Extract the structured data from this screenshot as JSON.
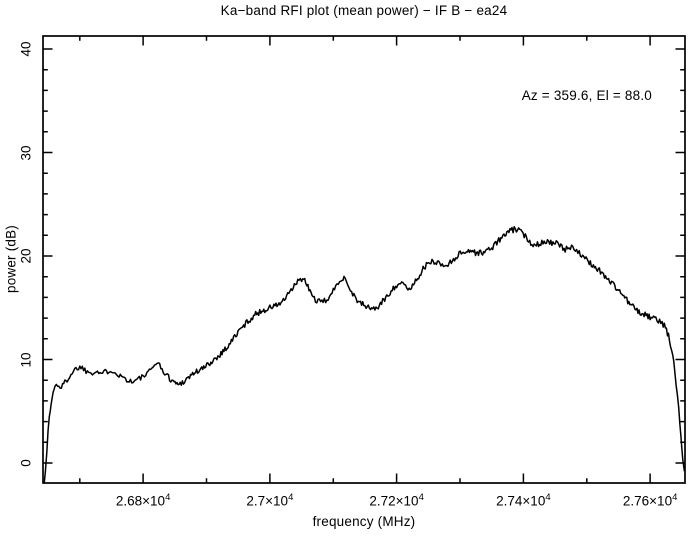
{
  "title": "Ka−band RFI plot (mean power) − IF B − ea24",
  "annotation": "Az = 359.6, El = 88.0",
  "chart_data": {
    "type": "line",
    "title": "Ka−band RFI plot (mean power) − IF B − ea24",
    "xlabel": "frequency (MHz)",
    "ylabel": "power (dB)",
    "annotation": "Az = 359.6, El = 88.0",
    "xlim": [
      26642,
      27655
    ],
    "ylim": [
      -1.93,
      41.26
    ],
    "grid": false,
    "legend": "none",
    "line_color": "#000000",
    "background_color": "#ffffff",
    "x_major_ticks": [
      {
        "value": 26800,
        "base": "2.68×10",
        "exp": "4"
      },
      {
        "value": 27000,
        "base": "2.7×10",
        "exp": "4"
      },
      {
        "value": 27200,
        "base": "2.72×10",
        "exp": "4"
      },
      {
        "value": 27400,
        "base": "2.74×10",
        "exp": "4"
      },
      {
        "value": 27600,
        "base": "2.76×10",
        "exp": "4"
      }
    ],
    "x_minor_ticks": [
      26700,
      26900,
      27100,
      27300,
      27500
    ],
    "y_major_ticks": [
      {
        "value": 0,
        "label": "0"
      },
      {
        "value": 10,
        "label": "10"
      },
      {
        "value": 20,
        "label": "20"
      },
      {
        "value": 30,
        "label": "30"
      },
      {
        "value": 40,
        "label": "40"
      }
    ],
    "y_minor_step": 2,
    "series": [
      {
        "name": "mean power",
        "points": [
          [
            26644,
            -1.9
          ],
          [
            26646,
            -0.5
          ],
          [
            26648,
            1.2
          ],
          [
            26650,
            3.0
          ],
          [
            26652,
            4.4
          ],
          [
            26655,
            5.8
          ],
          [
            26658,
            6.8
          ],
          [
            26661,
            7.4
          ],
          [
            26665,
            7.6
          ],
          [
            26669,
            7.3
          ],
          [
            26673,
            7.5
          ],
          [
            26678,
            7.9
          ],
          [
            26684,
            8.4
          ],
          [
            26690,
            8.9
          ],
          [
            26696,
            9.2
          ],
          [
            26702,
            9.3
          ],
          [
            26708,
            9.0
          ],
          [
            26714,
            8.8
          ],
          [
            26720,
            8.8
          ],
          [
            26726,
            8.9
          ],
          [
            26732,
            8.7
          ],
          [
            26738,
            8.7
          ],
          [
            26744,
            8.9
          ],
          [
            26750,
            9.0
          ],
          [
            26756,
            8.8
          ],
          [
            26762,
            8.5
          ],
          [
            26768,
            8.3
          ],
          [
            26774,
            8.1
          ],
          [
            26780,
            7.9
          ],
          [
            26786,
            7.9
          ],
          [
            26792,
            8.1
          ],
          [
            26798,
            8.3
          ],
          [
            26804,
            8.5
          ],
          [
            26810,
            8.8
          ],
          [
            26816,
            9.3
          ],
          [
            26820,
            9.8
          ],
          [
            26824,
            9.6
          ],
          [
            26828,
            9.2
          ],
          [
            26834,
            8.7
          ],
          [
            26840,
            8.3
          ],
          [
            26847,
            7.9
          ],
          [
            26855,
            7.6
          ],
          [
            26862,
            7.8
          ],
          [
            26870,
            8.2
          ],
          [
            26878,
            8.6
          ],
          [
            26886,
            8.9
          ],
          [
            26894,
            9.1
          ],
          [
            26902,
            9.5
          ],
          [
            26910,
            9.9
          ],
          [
            26918,
            10.3
          ],
          [
            26926,
            10.8
          ],
          [
            26934,
            11.3
          ],
          [
            26941,
            11.9
          ],
          [
            26948,
            12.5
          ],
          [
            26955,
            13.0
          ],
          [
            26962,
            13.5
          ],
          [
            26969,
            13.9
          ],
          [
            26976,
            14.3
          ],
          [
            26984,
            14.6
          ],
          [
            26992,
            14.8
          ],
          [
            27000,
            15.0
          ],
          [
            27008,
            15.2
          ],
          [
            27016,
            15.4
          ],
          [
            27023,
            15.8
          ],
          [
            27030,
            16.3
          ],
          [
            27037,
            17.0
          ],
          [
            27044,
            17.5
          ],
          [
            27050,
            17.8
          ],
          [
            27055,
            17.6
          ],
          [
            27060,
            17.0
          ],
          [
            27065,
            16.4
          ],
          [
            27070,
            15.9
          ],
          [
            27076,
            15.6
          ],
          [
            27082,
            15.5
          ],
          [
            27088,
            15.7
          ],
          [
            27094,
            16.1
          ],
          [
            27100,
            16.6
          ],
          [
            27106,
            17.2
          ],
          [
            27112,
            17.8
          ],
          [
            27117,
            18.0
          ],
          [
            27123,
            17.3
          ],
          [
            27129,
            16.5
          ],
          [
            27136,
            15.9
          ],
          [
            27143,
            15.4
          ],
          [
            27150,
            15.2
          ],
          [
            27157,
            15.0
          ],
          [
            27164,
            14.9
          ],
          [
            27171,
            15.1
          ],
          [
            27178,
            15.6
          ],
          [
            27186,
            16.2
          ],
          [
            27193,
            16.8
          ],
          [
            27200,
            17.2
          ],
          [
            27206,
            17.4
          ],
          [
            27212,
            17.1
          ],
          [
            27218,
            16.8
          ],
          [
            27225,
            17.1
          ],
          [
            27233,
            17.9
          ],
          [
            27240,
            18.6
          ],
          [
            27247,
            19.1
          ],
          [
            27254,
            19.4
          ],
          [
            27261,
            19.5
          ],
          [
            27268,
            19.3
          ],
          [
            27274,
            19.0
          ],
          [
            27281,
            19.2
          ],
          [
            27288,
            19.6
          ],
          [
            27295,
            20.0
          ],
          [
            27302,
            20.3
          ],
          [
            27310,
            20.5
          ],
          [
            27318,
            20.5
          ],
          [
            27326,
            20.3
          ],
          [
            27334,
            20.3
          ],
          [
            27342,
            20.5
          ],
          [
            27350,
            20.8
          ],
          [
            27358,
            21.3
          ],
          [
            27366,
            21.8
          ],
          [
            27374,
            22.2
          ],
          [
            27382,
            22.5
          ],
          [
            27389,
            22.6
          ],
          [
            27396,
            22.3
          ],
          [
            27403,
            21.9
          ],
          [
            27410,
            21.4
          ],
          [
            27417,
            21.1
          ],
          [
            27424,
            21.2
          ],
          [
            27431,
            21.4
          ],
          [
            27438,
            21.4
          ],
          [
            27445,
            21.3
          ],
          [
            27452,
            21.2
          ],
          [
            27459,
            20.9
          ],
          [
            27466,
            20.6
          ],
          [
            27472,
            20.8
          ],
          [
            27478,
            21.0
          ],
          [
            27484,
            20.6
          ],
          [
            27490,
            20.1
          ],
          [
            27497,
            19.7
          ],
          [
            27504,
            19.4
          ],
          [
            27512,
            19.0
          ],
          [
            27520,
            18.6
          ],
          [
            27528,
            18.1
          ],
          [
            27536,
            17.6
          ],
          [
            27544,
            17.1
          ],
          [
            27552,
            16.6
          ],
          [
            27560,
            16.0
          ],
          [
            27568,
            15.4
          ],
          [
            27576,
            14.9
          ],
          [
            27584,
            14.5
          ],
          [
            27592,
            14.3
          ],
          [
            27600,
            14.1
          ],
          [
            27607,
            13.9
          ],
          [
            27613,
            13.8
          ],
          [
            27619,
            13.5
          ],
          [
            27624,
            13.1
          ],
          [
            27629,
            12.3
          ],
          [
            27634,
            10.9
          ],
          [
            27639,
            8.9
          ],
          [
            27643,
            6.6
          ],
          [
            27647,
            3.9
          ],
          [
            27650,
            1.6
          ],
          [
            27653,
            -0.4
          ],
          [
            27654,
            -0.8
          ]
        ]
      }
    ]
  }
}
